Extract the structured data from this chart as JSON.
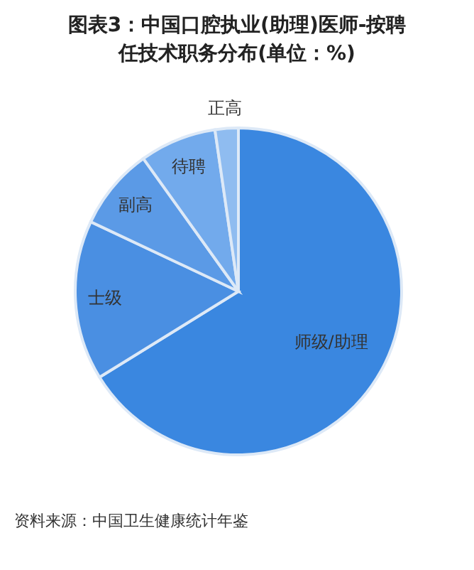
{
  "chart_data": {
    "type": "pie",
    "title": "图表3：中国口腔执业(助理)医师-按聘任技术职务分布(单位：%)",
    "categories": [
      "师级/助理",
      "士级",
      "副高",
      "待聘",
      "正高"
    ],
    "values": [
      66.2,
      15.8,
      8.1,
      7.6,
      2.3
    ],
    "colors": [
      "#3a87e0",
      "#4a8fe2",
      "#5b9ae6",
      "#72aaec",
      "#8fbcf0"
    ],
    "annotations": [
      "资料来源：中国卫生健康统计年鉴"
    ]
  }
}
